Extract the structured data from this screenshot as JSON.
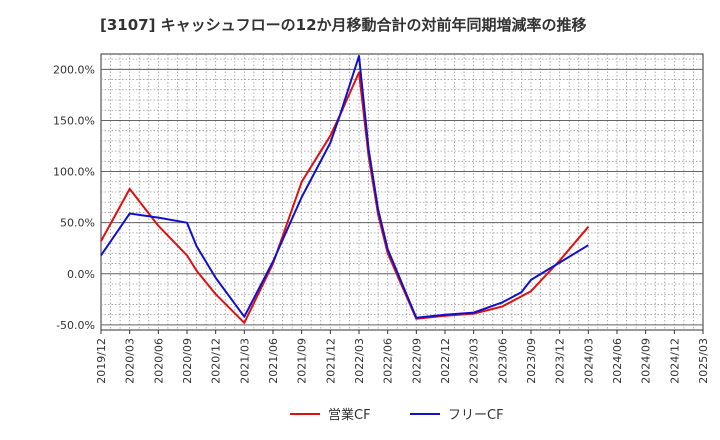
{
  "chart_data": {
    "type": "line",
    "title": "[3107]  キャッシュフローの12か月移動合計の対前年同期増減率の推移",
    "xlabel": "",
    "ylabel": "",
    "x_ticks": [
      "2019/12",
      "2020/03",
      "2020/06",
      "2020/09",
      "2020/12",
      "2021/03",
      "2021/06",
      "2021/09",
      "2021/12",
      "2022/03",
      "2022/06",
      "2022/09",
      "2022/12",
      "2023/03",
      "2023/06",
      "2023/09",
      "2023/12",
      "2024/03",
      "2024/06",
      "2024/09",
      "2024/12",
      "2025/03"
    ],
    "y_ticks": [
      200,
      150,
      100,
      50,
      0,
      -50
    ],
    "y_tick_labels": [
      "200.0%",
      "150.0%",
      "100.0%",
      "50.0%",
      "0.0%",
      "-50.0%"
    ],
    "ylim": [
      -55,
      215
    ],
    "grid": true,
    "legend_position": "bottom",
    "colors": {
      "営業CF": "#dd1111",
      "フリーCF": "#1111cc"
    },
    "series": [
      {
        "name": "営業CF",
        "color": "#dd1111",
        "points": [
          [
            "2019/12",
            32
          ],
          [
            "2020/03",
            83
          ],
          [
            "2020/06",
            47
          ],
          [
            "2020/09",
            18
          ],
          [
            "2020/10",
            3
          ],
          [
            "2020/12",
            -20
          ],
          [
            "2021/03",
            -48
          ],
          [
            "2021/06",
            10
          ],
          [
            "2021/09",
            90
          ],
          [
            "2021/12",
            135
          ],
          [
            "2022/01",
            155
          ],
          [
            "2022/03",
            197
          ],
          [
            "2022/04",
            115
          ],
          [
            "2022/05",
            58
          ],
          [
            "2022/06",
            20
          ],
          [
            "2022/09",
            -44
          ],
          [
            "2022/12",
            -41
          ],
          [
            "2023/03",
            -39
          ],
          [
            "2023/06",
            -32
          ],
          [
            "2023/09",
            -17
          ],
          [
            "2023/12",
            13
          ],
          [
            "2024/03",
            46
          ]
        ]
      },
      {
        "name": "フリーCF",
        "color": "#1111cc",
        "points": [
          [
            "2019/12",
            18
          ],
          [
            "2020/03",
            59
          ],
          [
            "2020/06",
            55
          ],
          [
            "2020/09",
            50
          ],
          [
            "2020/10",
            27
          ],
          [
            "2020/12",
            -4
          ],
          [
            "2021/03",
            -42
          ],
          [
            "2021/06",
            12
          ],
          [
            "2021/09",
            75
          ],
          [
            "2021/12",
            128
          ],
          [
            "2022/01",
            155
          ],
          [
            "2022/03",
            213
          ],
          [
            "2022/04",
            122
          ],
          [
            "2022/05",
            63
          ],
          [
            "2022/06",
            24
          ],
          [
            "2022/09",
            -43
          ],
          [
            "2022/12",
            -40
          ],
          [
            "2023/03",
            -38
          ],
          [
            "2023/06",
            -28
          ],
          [
            "2023/08",
            -18
          ],
          [
            "2023/09",
            -6
          ],
          [
            "2023/12",
            11
          ],
          [
            "2024/03",
            28
          ]
        ]
      }
    ]
  }
}
